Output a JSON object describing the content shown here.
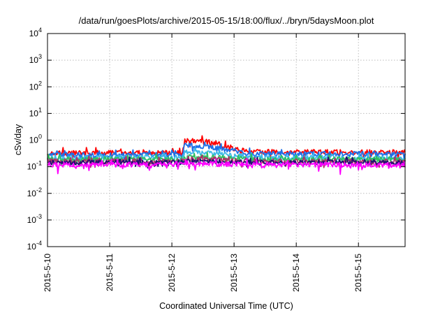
{
  "chart_data": {
    "type": "line",
    "title": "/data/run/goesPlots/archive/2015-05-15/18:00/flux/../bryn/5daysMoon.plot",
    "xlabel": "Coordinated Universal Time (UTC)",
    "ylabel": "cSv/day",
    "y_scale": "log",
    "ylim": [
      0.0001,
      10000
    ],
    "y_ticks": [
      {
        "value": 0.0001,
        "base": "10",
        "exp": "-4"
      },
      {
        "value": 0.001,
        "base": "10",
        "exp": "-3"
      },
      {
        "value": 0.01,
        "base": "10",
        "exp": "-2"
      },
      {
        "value": 0.1,
        "base": "10",
        "exp": "-1"
      },
      {
        "value": 1,
        "base": "10",
        "exp": "0"
      },
      {
        "value": 10,
        "base": "10",
        "exp": "1"
      },
      {
        "value": 100,
        "base": "10",
        "exp": "2"
      },
      {
        "value": 1000,
        "base": "10",
        "exp": "3"
      },
      {
        "value": 10000,
        "base": "10",
        "exp": "4"
      }
    ],
    "xlim": [
      "2015-05-10 00:00",
      "2015-05-15 18:00"
    ],
    "x_ticks": [
      "2015-5-10",
      "2015-5-11",
      "2015-5-12",
      "2015-5-13",
      "2015-5-14",
      "2015-5-15"
    ],
    "x_tick_dates": [
      "2015-05-10",
      "2015-05-11",
      "2015-05-12",
      "2015-05-13",
      "2015-05-14",
      "2015-05-15"
    ],
    "grid": true,
    "legend": "none",
    "series": [
      {
        "color": "#ff0000",
        "shape": [
          [
            "2015-05-10 00:00",
            0.33
          ],
          [
            "2015-05-12 04:00",
            0.33
          ],
          [
            "2015-05-12 05:00",
            0.95
          ],
          [
            "2015-05-12 12:00",
            0.9
          ],
          [
            "2015-05-12 18:00",
            0.75
          ],
          [
            "2015-05-12 22:00",
            0.5
          ],
          [
            "2015-05-13 03:00",
            0.42
          ],
          [
            "2015-05-13 06:00",
            0.36
          ],
          [
            "2015-05-15 18:00",
            0.35
          ]
        ]
      },
      {
        "color": "#1e6fe8",
        "shape": [
          [
            "2015-05-10 00:00",
            0.28
          ],
          [
            "2015-05-12 04:00",
            0.28
          ],
          [
            "2015-05-12 05:00",
            0.65
          ],
          [
            "2015-05-12 12:00",
            0.58
          ],
          [
            "2015-05-12 18:00",
            0.5
          ],
          [
            "2015-05-12 22:00",
            0.42
          ],
          [
            "2015-05-13 03:00",
            0.36
          ],
          [
            "2015-05-13 06:00",
            0.31
          ],
          [
            "2015-05-15 18:00",
            0.3
          ]
        ]
      },
      {
        "color": "#3cb8e8",
        "shape": [
          [
            "2015-05-10 00:00",
            0.22
          ],
          [
            "2015-05-12 04:00",
            0.22
          ],
          [
            "2015-05-12 05:00",
            0.36
          ],
          [
            "2015-05-12 12:00",
            0.33
          ],
          [
            "2015-05-12 18:00",
            0.3
          ],
          [
            "2015-05-13 03:00",
            0.25
          ],
          [
            "2015-05-13 06:00",
            0.22
          ],
          [
            "2015-05-15 18:00",
            0.21
          ]
        ]
      },
      {
        "color": "#30c060",
        "shape": [
          [
            "2015-05-10 00:00",
            0.19
          ],
          [
            "2015-05-12 04:00",
            0.19
          ],
          [
            "2015-05-12 06:00",
            0.24
          ],
          [
            "2015-05-12 18:00",
            0.22
          ],
          [
            "2015-05-13 06:00",
            0.19
          ],
          [
            "2015-05-15 18:00",
            0.185
          ]
        ]
      },
      {
        "color": "#b0306a",
        "shape": [
          [
            "2015-05-10 00:00",
            0.16
          ],
          [
            "2015-05-12 04:00",
            0.16
          ],
          [
            "2015-05-12 06:00",
            0.19
          ],
          [
            "2015-05-12 18:00",
            0.18
          ],
          [
            "2015-05-13 06:00",
            0.16
          ],
          [
            "2015-05-15 18:00",
            0.155
          ]
        ]
      },
      {
        "color": "#201070",
        "shape": [
          [
            "2015-05-10 00:00",
            0.145
          ],
          [
            "2015-05-12 04:00",
            0.145
          ],
          [
            "2015-05-12 06:00",
            0.16
          ],
          [
            "2015-05-13 06:00",
            0.145
          ],
          [
            "2015-05-15 18:00",
            0.14
          ]
        ]
      },
      {
        "color": "#ff00ff",
        "shape": [
          [
            "2015-05-10 00:00",
            0.12
          ],
          [
            "2015-05-12 04:00",
            0.12
          ],
          [
            "2015-05-12 06:00",
            0.13
          ],
          [
            "2015-05-13 06:00",
            0.12
          ],
          [
            "2015-05-15 18:00",
            0.115
          ]
        ],
        "dips": [
          [
            "2015-05-10 04:00",
            0.055
          ],
          [
            "2015-05-10 14:00",
            0.085
          ],
          [
            "2015-05-11 05:00",
            0.085
          ],
          [
            "2015-05-11 22:00",
            0.09
          ],
          [
            "2015-05-14 17:00",
            0.052
          ],
          [
            "2015-05-15 16:00",
            0.09
          ]
        ]
      }
    ]
  }
}
